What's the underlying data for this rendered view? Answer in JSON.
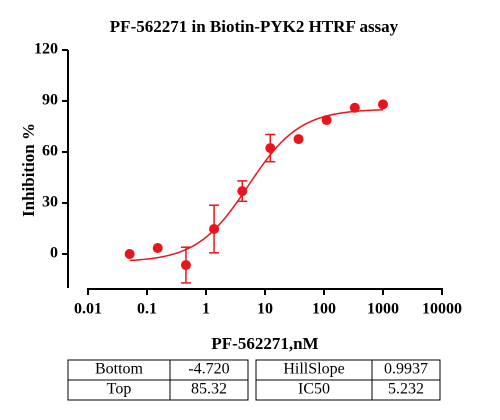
{
  "chart_data": {
    "type": "scatter",
    "title": "PF-562271 in Biotin-PYK2 HTRF assay",
    "xlabel": "PF-562271,nM",
    "ylabel": "Inhibition %",
    "xscale": "log",
    "xlim": [
      0.01,
      10000
    ],
    "xticks": [
      0.01,
      0.1,
      1,
      10,
      100,
      1000,
      10000
    ],
    "ylim": [
      -20,
      120
    ],
    "yticks": [
      0,
      30,
      60,
      90,
      120
    ],
    "series": [
      {
        "color": "#e8161c",
        "x": [
          0.0508,
          0.152,
          0.457,
          1.37,
          4.12,
          12.3,
          37,
          111,
          333,
          1000
        ],
        "values": [
          0,
          3.5,
          -6.5,
          14.7,
          37,
          62.3,
          67.6,
          78.8,
          86,
          88
        ],
        "errors": [
          null,
          null,
          10.5,
          14,
          6,
          8,
          null,
          null,
          null,
          null
        ]
      }
    ],
    "fit_table": [
      {
        "name": "Bottom",
        "value": -4.72,
        "label": "-4.720"
      },
      {
        "name": "Top",
        "value": 85.32,
        "label": "85.32"
      },
      {
        "name": "HillSlope",
        "value": 0.9937,
        "label": "0.9937"
      },
      {
        "name": "IC50",
        "value": 5.232,
        "label": "5.232"
      }
    ]
  }
}
